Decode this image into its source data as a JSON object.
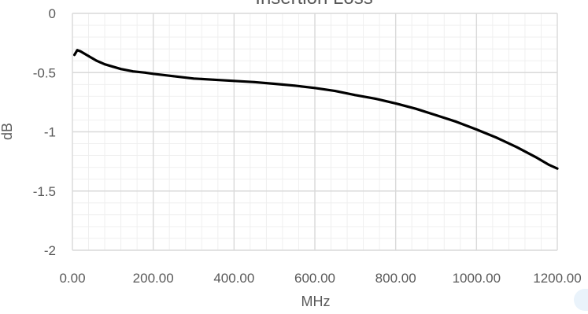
{
  "chart_data": {
    "type": "line",
    "title": "Insertion Loss",
    "xlabel": "MHz",
    "ylabel": "dB",
    "xlim": [
      0,
      1200
    ],
    "ylim": [
      -2,
      0
    ],
    "x_ticks": [
      0,
      200,
      400,
      600,
      800,
      1000,
      1200
    ],
    "x_tick_labels": [
      "0.00",
      "200.00",
      "400.00",
      "600.00",
      "800.00",
      "1000.00",
      "1200.00"
    ],
    "y_ticks": [
      0,
      -0.5,
      -1,
      -1.5,
      -2
    ],
    "y_tick_labels": [
      "0",
      "-0.5",
      "-1",
      "-1.5",
      "-2"
    ],
    "grid": true,
    "legend": "none",
    "series": [
      {
        "color": "#000000",
        "x": [
          5,
          12,
          20,
          30,
          40,
          50,
          60,
          80,
          100,
          120,
          150,
          180,
          200,
          250,
          300,
          350,
          400,
          450,
          500,
          550,
          600,
          650,
          700,
          750,
          800,
          850,
          900,
          950,
          1000,
          1050,
          1100,
          1150,
          1180,
          1200
        ],
        "y": [
          -0.35,
          -0.31,
          -0.32,
          -0.34,
          -0.36,
          -0.38,
          -0.4,
          -0.43,
          -0.45,
          -0.47,
          -0.49,
          -0.5,
          -0.51,
          -0.53,
          -0.55,
          -0.56,
          -0.57,
          -0.58,
          -0.595,
          -0.61,
          -0.63,
          -0.655,
          -0.69,
          -0.72,
          -0.76,
          -0.805,
          -0.86,
          -0.915,
          -0.98,
          -1.05,
          -1.13,
          -1.22,
          -1.28,
          -1.31
        ]
      }
    ]
  }
}
